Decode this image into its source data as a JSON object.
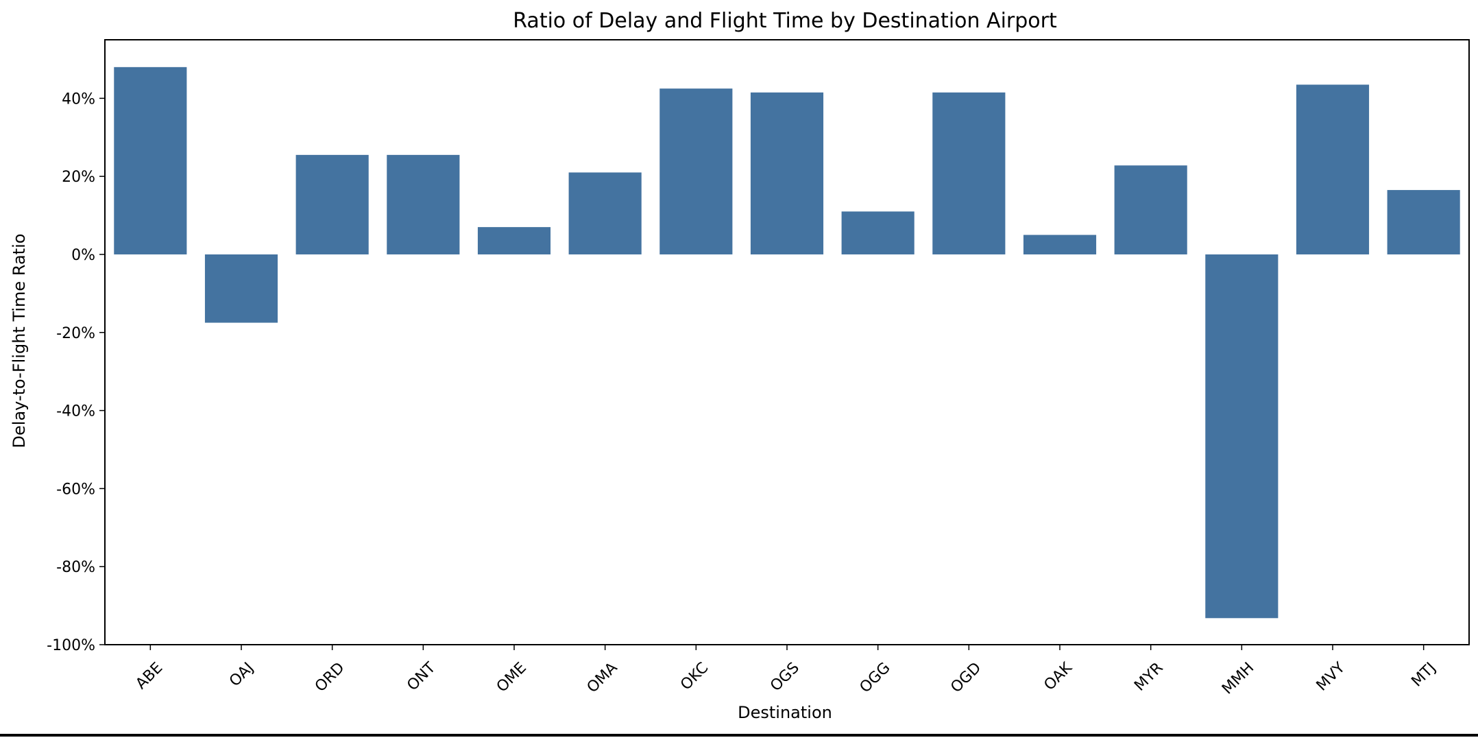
{
  "chart_data": {
    "type": "bar",
    "title": "Ratio of Delay and Flight Time by Destination Airport",
    "xlabel": "Destination",
    "ylabel": "Delay-to-Flight Time Ratio",
    "categories": [
      "ABE",
      "OAJ",
      "ORD",
      "ONT",
      "OME",
      "OMA",
      "OKC",
      "OGS",
      "OGG",
      "OGD",
      "OAK",
      "MYR",
      "MMH",
      "MVY",
      "MTJ"
    ],
    "values": [
      48.0,
      -17.5,
      25.5,
      25.5,
      7.0,
      21.0,
      42.5,
      41.5,
      11.0,
      41.5,
      5.0,
      22.8,
      -93.2,
      43.5,
      16.5
    ],
    "ylim": [
      -100,
      55
    ],
    "yticks": [
      -100,
      -80,
      -60,
      -40,
      -20,
      0,
      20,
      40
    ],
    "ytick_labels": [
      "-100%",
      "-80%",
      "-60%",
      "-40%",
      "-20%",
      "0%",
      "20%",
      "40%"
    ],
    "grid": false,
    "bar_color": "#4473a0"
  }
}
